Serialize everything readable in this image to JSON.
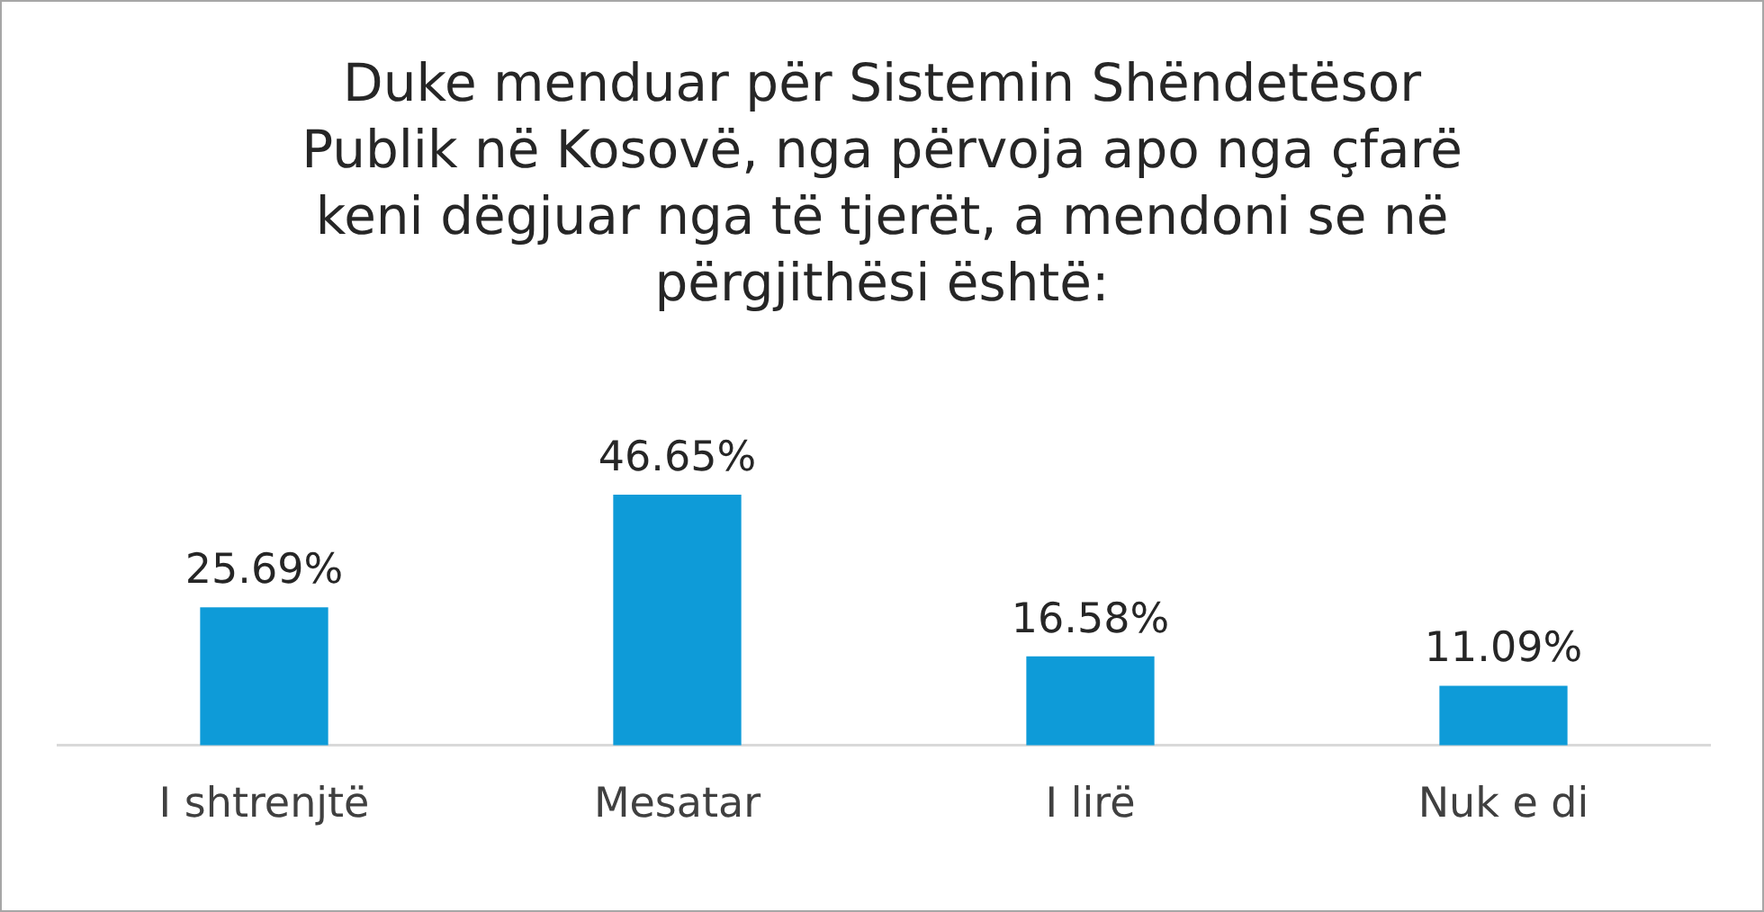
{
  "chart_data": {
    "type": "bar",
    "title": "Duke menduar për Sistemin Shëndetësor Publik në Kosovë, nga përvoja apo nga çfarë keni dëgjuar nga të tjerët, a mendoni se në përgjithësi është:",
    "categories": [
      "I shtrenjtë",
      "Mesatar",
      "I lirë",
      "Nuk e di"
    ],
    "values": [
      25.69,
      46.65,
      16.58,
      11.09
    ],
    "value_labels": [
      "25.69%",
      "46.65%",
      "16.58%",
      "11.09%"
    ],
    "color": "#0e9bd8"
  }
}
